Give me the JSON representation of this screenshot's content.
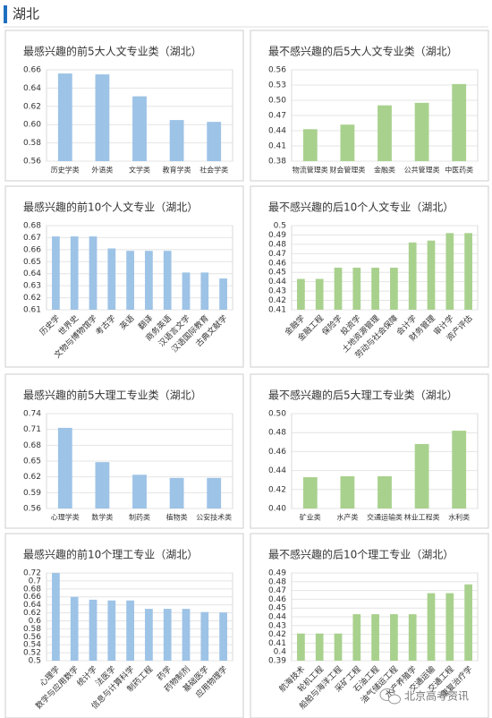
{
  "header": {
    "title": "湖北"
  },
  "watermark": "北京高考资讯",
  "chart_data": [
    {
      "type": "bar",
      "title": "最感兴趣的前5大人文专业类（湖北）",
      "color": "#9dc3e6",
      "grid": true,
      "categories": [
        "历史学类",
        "外语类",
        "文学类",
        "教育学类",
        "社会学类"
      ],
      "values": [
        0.656,
        0.655,
        0.631,
        0.605,
        0.603
      ],
      "ylim": [
        0.56,
        0.66
      ],
      "yticks": [
        0.56,
        0.58,
        {
          "value": 0.6,
          "label": "0.60"
        },
        0.62,
        0.64,
        0.66
      ]
    },
    {
      "type": "bar",
      "title": "最不感兴趣的后5大人文专业类（湖北）",
      "color": "#a9d18e",
      "grid": true,
      "categories": [
        "物流管理类",
        "财会管理类",
        "金融类",
        "公共管理类",
        "中医药类"
      ],
      "values": [
        0.443,
        0.452,
        0.49,
        0.495,
        0.532
      ],
      "ylim": [
        0.38,
        0.56
      ],
      "yticks": [
        0.38,
        0.41,
        0.44,
        0.47,
        {
          "value": 0.5,
          "label": "0.50"
        },
        0.53,
        0.56
      ]
    },
    {
      "type": "bar",
      "title": "最感兴趣的前10个人文专业（湖北）",
      "color": "#9dc3e6",
      "grid": true,
      "categories": [
        "历史学",
        "世界史",
        "文物与博物馆学",
        "考古学",
        "英语",
        "翻译",
        "商务英语",
        "汉语言文学",
        "汉语国际教育",
        "古典文献学"
      ],
      "values": [
        0.671,
        0.671,
        0.671,
        0.661,
        0.659,
        0.659,
        0.659,
        0.641,
        0.641,
        0.636
      ],
      "ylim": [
        0.61,
        0.68
      ],
      "yticks": [
        0.61,
        0.62,
        0.63,
        0.64,
        0.65,
        0.66,
        0.67,
        0.68
      ]
    },
    {
      "type": "bar",
      "title": "最不感兴趣的后10个人文专业（湖北）",
      "color": "#a9d18e",
      "grid": true,
      "categories": [
        "金融学",
        "金融工程",
        "保险学",
        "投资学",
        "土地资源管理",
        "劳动与社会保障",
        "会计学",
        "财务管理",
        "审计学",
        "资产评估"
      ],
      "values": [
        0.443,
        0.443,
        0.455,
        0.455,
        0.455,
        0.455,
        0.482,
        0.484,
        0.492,
        0.492
      ],
      "ylim": [
        0.41,
        0.5
      ],
      "yticks": [
        0.41,
        0.42,
        0.43,
        0.44,
        0.45,
        0.46,
        0.47,
        0.48,
        0.49,
        0.5
      ]
    },
    {
      "type": "bar",
      "title": "最感兴趣的前5大理工专业类（湖北）",
      "color": "#9dc3e6",
      "grid": true,
      "categories": [
        "心理学类",
        "数学类",
        "制药类",
        "植物类",
        "公安技术类"
      ],
      "values": [
        0.713,
        0.648,
        0.624,
        0.618,
        0.618
      ],
      "ylim": [
        0.56,
        0.74
      ],
      "yticks": [
        0.56,
        0.59,
        0.62,
        0.65,
        0.68,
        0.71,
        0.74
      ]
    },
    {
      "type": "bar",
      "title": "最不感兴趣的后5大理工专业类（湖北）",
      "color": "#a9d18e",
      "grid": true,
      "categories": [
        "矿业类",
        "水产类",
        "交通运输类",
        "林业工程类",
        "水利类"
      ],
      "values": [
        0.433,
        0.434,
        0.434,
        0.468,
        0.482
      ],
      "ylim": [
        0.4,
        0.5
      ],
      "yticks": [
        {
          "value": 0.4,
          "label": "0.40"
        },
        0.42,
        0.44,
        0.46,
        0.48,
        {
          "value": 0.5,
          "label": "0.50"
        }
      ]
    },
    {
      "type": "bar",
      "title": "最感兴趣的前10个理工专业（湖北）",
      "color": "#9dc3e6",
      "grid": true,
      "categories": [
        "心理学",
        "数学与应用数学",
        "统计学",
        "法医学",
        "信息与计算科学",
        "制药工程",
        "药学",
        "药物制剂",
        "基础医学",
        "应用物理学"
      ],
      "values": [
        0.72,
        0.66,
        0.653,
        0.651,
        0.651,
        0.63,
        0.63,
        0.63,
        0.622,
        0.621
      ],
      "ylim": [
        0.5,
        0.72
      ],
      "yticks": [
        0.5,
        0.52,
        0.54,
        0.56,
        0.58,
        0.6,
        0.62,
        0.64,
        0.66,
        0.68,
        0.7,
        0.72
      ]
    },
    {
      "type": "bar",
      "title": "最不感兴趣的后10个理工专业（湖北）",
      "color": "#a9d18e",
      "grid": true,
      "categories": [
        "航海技术",
        "轮机工程",
        "船舶与海洋工程",
        "采矿工程",
        "石油工程",
        "油气储运工程",
        "水产养殖学",
        "交通运输",
        "交通工程",
        "康复治疗学"
      ],
      "values": [
        0.421,
        0.421,
        0.421,
        0.443,
        0.443,
        0.443,
        0.443,
        0.467,
        0.467,
        0.477
      ],
      "ylim": [
        0.39,
        0.49
      ],
      "yticks": [
        0.39,
        0.4,
        0.41,
        0.42,
        0.43,
        0.44,
        0.45,
        0.46,
        0.47,
        0.48,
        0.49
      ]
    }
  ]
}
